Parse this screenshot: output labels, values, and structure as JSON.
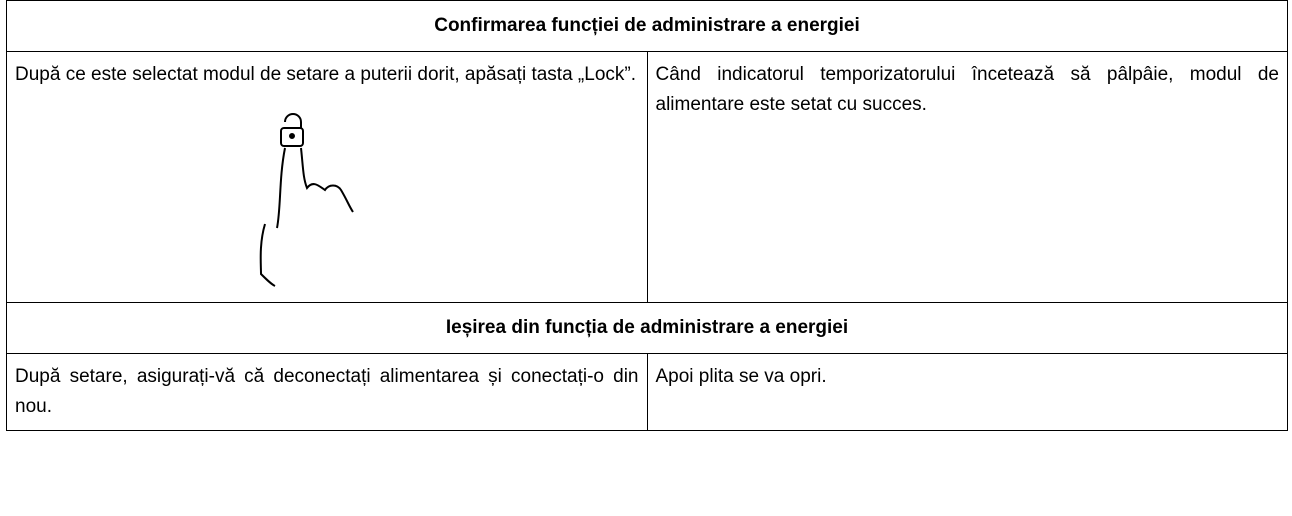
{
  "sections": [
    {
      "title": "Confirmarea funcției de administrare a energiei",
      "left": "După ce este selectat modul de setare a puterii dorit, apăsați tasta „Lock”.",
      "right": "Când indicatorul temporizatorului încetează să pâlpâie, modul de alimentare este setat cu succes."
    },
    {
      "title": "Ieșirea din funcția de administrare a energiei",
      "left": "După setare, asigurați-vă că deconectați alimentarea și conectați-o din nou.",
      "right": "Apoi plita se va opri."
    }
  ]
}
